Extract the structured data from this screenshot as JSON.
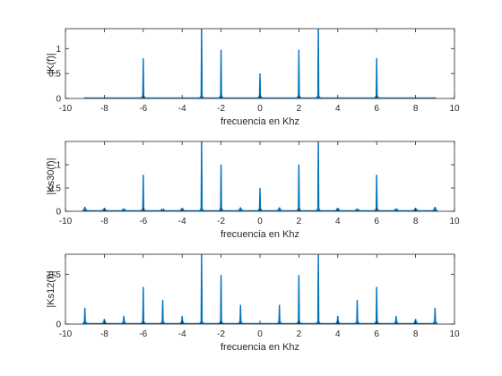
{
  "figure": {
    "background": "#ffffff",
    "axes_color": "#262626",
    "line_color": "#0072BD"
  },
  "chart_data": [
    {
      "type": "line",
      "xlabel": "frecuencia en Khz",
      "ylabel": "|K(f)|",
      "xlim": [
        -10,
        10
      ],
      "ylim": [
        0,
        1.4
      ],
      "xticks": [
        -10,
        -8,
        -6,
        -4,
        -2,
        0,
        2,
        4,
        6,
        8,
        10
      ],
      "yticks": [
        0,
        0.5,
        1
      ],
      "grid": false,
      "series": [
        {
          "x": [
            -6,
            -3,
            -2,
            0,
            2,
            3,
            6
          ],
          "y": [
            0.8,
            1.45,
            0.97,
            0.5,
            0.97,
            1.45,
            0.8
          ]
        }
      ]
    },
    {
      "type": "line",
      "xlabel": "frecuencia en Khz",
      "ylabel": "|Ks30(f)|",
      "xlim": [
        -10,
        10
      ],
      "ylim": [
        0,
        1.5
      ],
      "xticks": [
        -10,
        -8,
        -6,
        -4,
        -2,
        0,
        2,
        4,
        6,
        8,
        10
      ],
      "yticks": [
        0,
        0.5,
        1
      ],
      "grid": false,
      "series": [
        {
          "x": [
            -9,
            -8,
            -7,
            -6,
            -5,
            -4,
            -3,
            -2,
            -1,
            0,
            1,
            2,
            3,
            4,
            5,
            6,
            7,
            8,
            9
          ],
          "y": [
            0.09,
            0.05,
            0.04,
            0.78,
            0.03,
            0.03,
            1.55,
            1.0,
            0.08,
            0.5,
            0.08,
            1.0,
            1.55,
            0.03,
            0.03,
            0.78,
            0.04,
            0.05,
            0.09
          ]
        }
      ]
    },
    {
      "type": "line",
      "xlabel": "frecuencia en Khz",
      "ylabel": "|Ks12(f)|",
      "xlim": [
        -10,
        10
      ],
      "ylim": [
        0,
        0.7
      ],
      "xticks": [
        -10,
        -8,
        -6,
        -4,
        -2,
        0,
        2,
        4,
        6,
        8,
        10
      ],
      "yticks": [
        0,
        0.5
      ],
      "grid": false,
      "series": [
        {
          "x": [
            -9,
            -8,
            -7,
            -6,
            -5,
            -4,
            -3,
            -2,
            -1,
            0,
            1,
            2,
            3,
            4,
            5,
            6,
            7,
            8,
            9
          ],
          "y": [
            0.16,
            0.05,
            0.08,
            0.37,
            0.24,
            0.08,
            0.72,
            0.49,
            0.19,
            0.0,
            0.19,
            0.49,
            0.72,
            0.08,
            0.24,
            0.37,
            0.08,
            0.05,
            0.16
          ]
        }
      ]
    }
  ]
}
